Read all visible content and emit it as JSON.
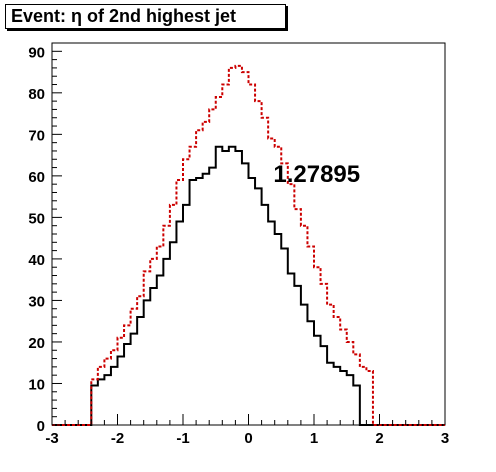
{
  "title": "Event: η of 2nd highest jet",
  "annotation": "1.27895",
  "chart_data": {
    "type": "histogram",
    "title": "Event: η of 2nd highest jet",
    "xlabel": "",
    "ylabel": "",
    "xlim": [
      -3,
      3
    ],
    "ylim": [
      0,
      92
    ],
    "xticks": [
      -3,
      -2,
      -1,
      0,
      1,
      2,
      3
    ],
    "yticks": [
      0,
      10,
      20,
      30,
      40,
      50,
      60,
      70,
      80,
      90
    ],
    "bin_width": 0.1,
    "x_start": -3.0,
    "grid": false,
    "series": [
      {
        "color": "#000000",
        "line_style": "solid",
        "values": [
          0,
          0,
          0,
          0,
          0,
          0,
          9.5,
          11,
          12,
          14,
          16.5,
          19.5,
          22,
          26,
          30,
          33,
          36,
          40,
          44,
          49,
          53,
          59,
          59.5,
          60.5,
          62,
          67,
          66,
          67,
          66,
          63,
          59.5,
          57,
          53,
          49,
          46,
          42.5,
          36.5,
          33.5,
          29,
          25,
          21.5,
          19,
          15,
          14,
          13,
          12,
          9.5,
          0,
          0,
          0,
          0,
          0,
          0,
          0,
          0,
          0,
          0,
          0,
          0,
          0
        ]
      },
      {
        "color": "#cc0000",
        "line_style": "dashed",
        "values": [
          0,
          0,
          0,
          0,
          0,
          0,
          11,
          14,
          16,
          18,
          21,
          24,
          28,
          31,
          37,
          40,
          43,
          48,
          53,
          59,
          64,
          67,
          71,
          73,
          76,
          79,
          82,
          86,
          86.5,
          85,
          82,
          78,
          74,
          69,
          67,
          63,
          58,
          52,
          48,
          43,
          38,
          34,
          29,
          26,
          23,
          20,
          17,
          14,
          13,
          0,
          0,
          0,
          0,
          0,
          0,
          0,
          0,
          0,
          0,
          0
        ]
      }
    ]
  }
}
